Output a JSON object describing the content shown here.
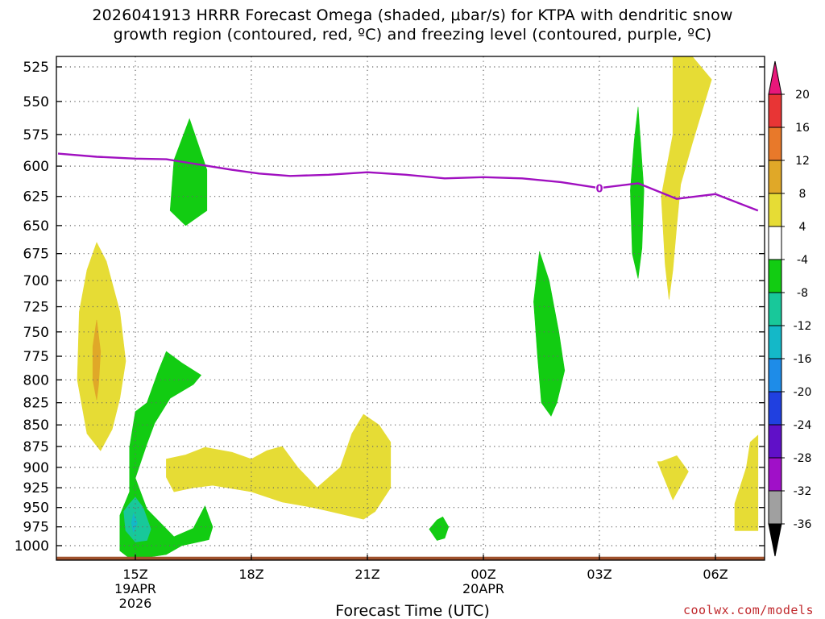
{
  "chart_data": {
    "type": "heatmap",
    "title_line1": "2026041913 HRRR Forecast Omega (shaded, μbar/s) for KTPA with dendritic snow",
    "title_line2": "growth region (contoured, red, ºC) and freezing level (contoured, purple, ºC)",
    "xlabel": "Forecast Time (UTC)",
    "ylabel": "",
    "credit": "coolwx.com/models",
    "x_unit": "hours after 2026-04-19 00Z",
    "xlim": [
      13.0,
      31.1
    ],
    "ylim_hpa": [
      1025,
      515
    ],
    "y_ticks": [
      525,
      550,
      575,
      600,
      625,
      650,
      675,
      700,
      725,
      750,
      775,
      800,
      825,
      850,
      875,
      900,
      925,
      950,
      975,
      1000
    ],
    "x_ticks": [
      {
        "hour": 15,
        "lines": [
          "15Z",
          "19APR",
          "2026"
        ]
      },
      {
        "hour": 18,
        "lines": [
          "18Z"
        ]
      },
      {
        "hour": 21,
        "lines": [
          "21Z"
        ]
      },
      {
        "hour": 24,
        "lines": [
          "00Z",
          "20APR"
        ]
      },
      {
        "hour": 27,
        "lines": [
          "03Z"
        ]
      },
      {
        "hour": 30,
        "lines": [
          "06Z"
        ]
      }
    ],
    "colorbar": {
      "labels": [
        "20",
        "16",
        "12",
        "8",
        "4",
        "-4",
        "-8",
        "-12",
        "-16",
        "-20",
        "-24",
        "-28",
        "-32",
        "-36"
      ],
      "colors": [
        "#e8177a",
        "#e83535",
        "#e8792a",
        "#e0a828",
        "#e6dc35",
        "#ffffff",
        "#12cc12",
        "#18c89a",
        "#14b8c8",
        "#1e8ce8",
        "#2040e0",
        "#6010c8",
        "#a010c8",
        "#a0a0a0",
        "#000000"
      ]
    },
    "freezing_level": {
      "label": "0",
      "label_hour": 27.0,
      "color": "#a010c0",
      "points": [
        [
          13.0,
          590
        ],
        [
          14.0,
          592.5
        ],
        [
          15.0,
          594
        ],
        [
          15.8,
          594.5
        ],
        [
          16.5,
          598
        ],
        [
          17.5,
          603
        ],
        [
          18.2,
          606
        ],
        [
          19.0,
          608
        ],
        [
          20.0,
          607
        ],
        [
          21.0,
          605
        ],
        [
          22.0,
          607
        ],
        [
          23.0,
          610
        ],
        [
          24.0,
          609
        ],
        [
          25.0,
          610
        ],
        [
          26.0,
          613
        ],
        [
          27.0,
          618
        ],
        [
          28.0,
          614
        ],
        [
          29.0,
          627
        ],
        [
          30.0,
          623
        ],
        [
          31.1,
          637
        ]
      ]
    },
    "surface_band": {
      "color": "#a0522d",
      "top_hpa": 1015
    },
    "omega_regions": [
      {
        "value": 6,
        "color": "#e6dc35",
        "points": [
          [
            14.0,
            665
          ],
          [
            14.25,
            682
          ],
          [
            14.6,
            730
          ],
          [
            14.75,
            780
          ],
          [
            14.6,
            820
          ],
          [
            14.4,
            855
          ],
          [
            14.1,
            880
          ],
          [
            13.75,
            860
          ],
          [
            13.5,
            800
          ],
          [
            13.55,
            730
          ],
          [
            13.75,
            690
          ]
        ]
      },
      {
        "value": 10,
        "color": "#e0a828",
        "points": [
          [
            14.0,
            738
          ],
          [
            14.1,
            770
          ],
          [
            14.05,
            805
          ],
          [
            14.0,
            822
          ],
          [
            13.9,
            800
          ],
          [
            13.9,
            765
          ]
        ]
      },
      {
        "value": -6,
        "color": "#12cc12",
        "points": [
          [
            16.4,
            563
          ],
          [
            16.85,
            603
          ],
          [
            16.85,
            637
          ],
          [
            16.3,
            650
          ],
          [
            15.9,
            637
          ],
          [
            16.0,
            595
          ]
        ]
      },
      {
        "value": -6,
        "color": "#12cc12",
        "points": [
          [
            15.8,
            770
          ],
          [
            16.2,
            782
          ],
          [
            16.7,
            795
          ],
          [
            16.5,
            805
          ],
          [
            15.9,
            820
          ],
          [
            15.5,
            848
          ],
          [
            15.3,
            872
          ],
          [
            15.0,
            913
          ],
          [
            15.3,
            952
          ],
          [
            16.0,
            988
          ],
          [
            16.5,
            977
          ],
          [
            16.8,
            948
          ],
          [
            17.0,
            975
          ],
          [
            16.9,
            992
          ],
          [
            16.2,
            1000
          ],
          [
            15.8,
            1012
          ],
          [
            14.9,
            1019
          ],
          [
            14.6,
            1007
          ],
          [
            14.6,
            960
          ],
          [
            14.85,
            930
          ],
          [
            14.85,
            876
          ],
          [
            15.0,
            835
          ],
          [
            15.3,
            825
          ],
          [
            15.6,
            790
          ]
        ]
      },
      {
        "value": -10,
        "color": "#18c89a",
        "points": [
          [
            15.0,
            937
          ],
          [
            15.2,
            950
          ],
          [
            15.4,
            978
          ],
          [
            15.3,
            993
          ],
          [
            15.0,
            995
          ],
          [
            14.75,
            980
          ],
          [
            14.7,
            955
          ],
          [
            14.85,
            945
          ]
        ]
      },
      {
        "value": -14,
        "color": "#14b8c8",
        "points": [
          [
            14.95,
            958
          ],
          [
            15.05,
            970
          ],
          [
            14.95,
            982
          ],
          [
            14.9,
            970
          ]
        ]
      },
      {
        "value": 6,
        "color": "#e6dc35",
        "points": [
          [
            15.8,
            890
          ],
          [
            16.3,
            885
          ],
          [
            16.8,
            876
          ],
          [
            17.5,
            882
          ],
          [
            18.0,
            890
          ],
          [
            18.4,
            880
          ],
          [
            18.8,
            875
          ],
          [
            19.2,
            900
          ],
          [
            19.7,
            925
          ],
          [
            20.3,
            900
          ],
          [
            20.6,
            860
          ],
          [
            20.9,
            838
          ],
          [
            21.3,
            850
          ],
          [
            21.6,
            870
          ],
          [
            21.6,
            925
          ],
          [
            21.2,
            955
          ],
          [
            20.9,
            965
          ],
          [
            20.3,
            958
          ],
          [
            19.6,
            950
          ],
          [
            18.8,
            943
          ],
          [
            18.0,
            930
          ],
          [
            17.0,
            922
          ],
          [
            16.5,
            925
          ],
          [
            16.2,
            928
          ],
          [
            16.0,
            930
          ],
          [
            15.8,
            912
          ]
        ]
      },
      {
        "value": -6,
        "color": "#12cc12",
        "points": [
          [
            22.95,
            962
          ],
          [
            23.1,
            975
          ],
          [
            23.0,
            990
          ],
          [
            22.8,
            993
          ],
          [
            22.6,
            978
          ],
          [
            22.8,
            966
          ]
        ]
      },
      {
        "value": -6,
        "color": "#12cc12",
        "points": [
          [
            25.45,
            673
          ],
          [
            25.7,
            700
          ],
          [
            25.95,
            750
          ],
          [
            26.1,
            790
          ],
          [
            25.9,
            825
          ],
          [
            25.75,
            840
          ],
          [
            25.5,
            825
          ],
          [
            25.4,
            775
          ],
          [
            25.3,
            720
          ]
        ]
      },
      {
        "value": -6,
        "color": "#12cc12",
        "points": [
          [
            28.0,
            554
          ],
          [
            28.15,
            620
          ],
          [
            28.1,
            670
          ],
          [
            28.0,
            698
          ],
          [
            27.85,
            675
          ],
          [
            27.8,
            620
          ],
          [
            27.9,
            580
          ]
        ]
      },
      {
        "value": 6,
        "color": "#e6dc35",
        "points": [
          [
            28.9,
            515
          ],
          [
            29.4,
            515
          ],
          [
            29.9,
            534
          ],
          [
            29.4,
            582
          ],
          [
            29.1,
            615
          ],
          [
            29.0,
            650
          ],
          [
            28.9,
            690
          ],
          [
            28.8,
            718
          ],
          [
            28.7,
            685
          ],
          [
            28.6,
            625
          ],
          [
            28.9,
            575
          ]
        ]
      },
      {
        "value": 6,
        "color": "#e6dc35",
        "points": [
          [
            28.6,
            893
          ],
          [
            29.0,
            886
          ],
          [
            29.3,
            905
          ],
          [
            28.9,
            940
          ],
          [
            28.5,
            893
          ]
        ]
      },
      {
        "value": 6,
        "color": "#e6dc35",
        "points": [
          [
            30.9,
            870
          ],
          [
            31.1,
            862
          ],
          [
            31.1,
            980
          ],
          [
            30.5,
            980
          ],
          [
            30.5,
            945
          ],
          [
            30.8,
            900
          ]
        ]
      }
    ]
  }
}
